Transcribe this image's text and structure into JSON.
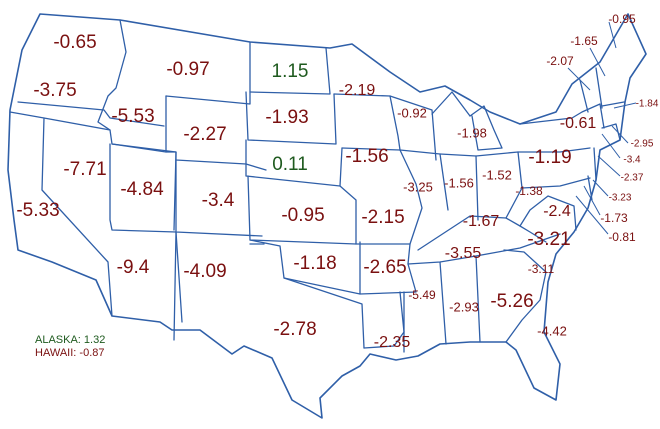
{
  "colors": {
    "negative": "#7a1010",
    "positive": "#1e5a1e",
    "border": "#2f5fa8"
  },
  "states": [
    {
      "id": "WA",
      "value": "-0.65",
      "sign": "negative"
    },
    {
      "id": "OR",
      "value": "-3.75",
      "sign": "negative"
    },
    {
      "id": "ID",
      "value": "-5.53",
      "sign": "negative"
    },
    {
      "id": "MT",
      "value": "-0.97",
      "sign": "negative"
    },
    {
      "id": "ND",
      "value": "1.15",
      "sign": "positive"
    },
    {
      "id": "MN",
      "value": "-2.19",
      "sign": "negative"
    },
    {
      "id": "SD",
      "value": "-1.93",
      "sign": "negative"
    },
    {
      "id": "WY",
      "value": "-2.27",
      "sign": "negative"
    },
    {
      "id": "NE",
      "value": "0.11",
      "sign": "positive"
    },
    {
      "id": "IA",
      "value": "-1.56",
      "sign": "negative"
    },
    {
      "id": "NV",
      "value": "-7.71",
      "sign": "negative"
    },
    {
      "id": "UT",
      "value": "-4.84",
      "sign": "negative"
    },
    {
      "id": "CO",
      "value": "-3.4",
      "sign": "negative"
    },
    {
      "id": "CA",
      "value": "-5.33",
      "sign": "negative"
    },
    {
      "id": "KS",
      "value": "-0.95",
      "sign": "negative"
    },
    {
      "id": "MO",
      "value": "-2.15",
      "sign": "negative"
    },
    {
      "id": "AZ",
      "value": "-9.4",
      "sign": "negative"
    },
    {
      "id": "NM",
      "value": "-4.09",
      "sign": "negative"
    },
    {
      "id": "OK",
      "value": "-1.18",
      "sign": "negative"
    },
    {
      "id": "AR",
      "value": "-2.65",
      "sign": "negative"
    },
    {
      "id": "TX",
      "value": "-2.78",
      "sign": "negative"
    },
    {
      "id": "LA",
      "value": "-2.35",
      "sign": "negative"
    },
    {
      "id": "WI",
      "value": "-0.92",
      "sign": "negative"
    },
    {
      "id": "MI",
      "value": "-1.98",
      "sign": "negative"
    },
    {
      "id": "IL",
      "value": "-3.25",
      "sign": "negative"
    },
    {
      "id": "IN",
      "value": "-1.56",
      "sign": "negative"
    },
    {
      "id": "OH",
      "value": "-1.52",
      "sign": "negative"
    },
    {
      "id": "KY",
      "value": "-1.67",
      "sign": "negative"
    },
    {
      "id": "TN",
      "value": "-3.55",
      "sign": "negative"
    },
    {
      "id": "MS",
      "value": "-5.49",
      "sign": "negative"
    },
    {
      "id": "AL",
      "value": "-2.93",
      "sign": "negative"
    },
    {
      "id": "GA",
      "value": "-5.26",
      "sign": "negative"
    },
    {
      "id": "FL",
      "value": "-4.42",
      "sign": "negative"
    },
    {
      "id": "SC",
      "value": "-3.11",
      "sign": "negative"
    },
    {
      "id": "NC",
      "value": "-3.21",
      "sign": "negative"
    },
    {
      "id": "VA",
      "value": "-2.4",
      "sign": "negative"
    },
    {
      "id": "WV",
      "value": "-1.38",
      "sign": "negative"
    },
    {
      "id": "PA",
      "value": "-1.19",
      "sign": "negative"
    },
    {
      "id": "NY",
      "value": "-0.61",
      "sign": "negative"
    },
    {
      "id": "VT",
      "value": "-2.07",
      "sign": "negative"
    },
    {
      "id": "NH",
      "value": "-1.65",
      "sign": "negative"
    },
    {
      "id": "ME",
      "value": "-0.95",
      "sign": "negative"
    },
    {
      "id": "MA",
      "value": "-1.84",
      "sign": "negative"
    },
    {
      "id": "RI",
      "value": "-2.95",
      "sign": "negative"
    },
    {
      "id": "CT",
      "value": "-3.4",
      "sign": "negative"
    },
    {
      "id": "NJ",
      "value": "-2.37",
      "sign": "negative"
    },
    {
      "id": "DE",
      "value": "-3.23",
      "sign": "negative"
    },
    {
      "id": "MD",
      "value": "-1.73",
      "sign": "negative"
    },
    {
      "id": "DC",
      "value": "-0.81",
      "sign": "negative"
    }
  ],
  "notes": {
    "alaska_label": "ALASKA:",
    "alaska_value": "1.32",
    "hawaii_label": "HAWAII:",
    "hawaii_value": "-0.87"
  }
}
